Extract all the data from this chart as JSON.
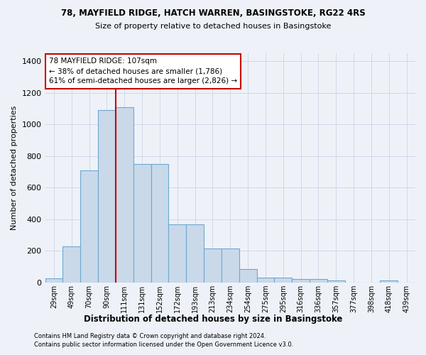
{
  "title1": "78, MAYFIELD RIDGE, HATCH WARREN, BASINGSTOKE, RG22 4RS",
  "title2": "Size of property relative to detached houses in Basingstoke",
  "xlabel": "Distribution of detached houses by size in Basingstoke",
  "ylabel": "Number of detached properties",
  "footnote1": "Contains HM Land Registry data © Crown copyright and database right 2024.",
  "footnote2": "Contains public sector information licensed under the Open Government Licence v3.0.",
  "categories": [
    "29sqm",
    "49sqm",
    "70sqm",
    "90sqm",
    "111sqm",
    "131sqm",
    "152sqm",
    "172sqm",
    "193sqm",
    "213sqm",
    "234sqm",
    "254sqm",
    "275sqm",
    "295sqm",
    "316sqm",
    "336sqm",
    "357sqm",
    "377sqm",
    "398sqm",
    "418sqm",
    "439sqm"
  ],
  "values": [
    25,
    230,
    710,
    1090,
    1110,
    750,
    750,
    365,
    365,
    215,
    215,
    85,
    30,
    30,
    20,
    20,
    10,
    0,
    0,
    10,
    0
  ],
  "bar_color": "#c9d9ea",
  "bar_edge_color": "#6fa8d0",
  "annotation_line1": "78 MAYFIELD RIDGE: 107sqm",
  "annotation_line2": "← 38% of detached houses are smaller (1,786)",
  "annotation_line3": "61% of semi-detached houses are larger (2,826) →",
  "annotation_box_color": "#ffffff",
  "annotation_box_edge": "#cc0000",
  "vline_color": "#cc0000",
  "vline_position": 3.5,
  "grid_color": "#d0d8e8",
  "ylim": [
    0,
    1450
  ],
  "yticks": [
    0,
    200,
    400,
    600,
    800,
    1000,
    1200,
    1400
  ],
  "background_color": "#eef2f8",
  "figsize": [
    6.0,
    5.0
  ],
  "dpi": 100
}
